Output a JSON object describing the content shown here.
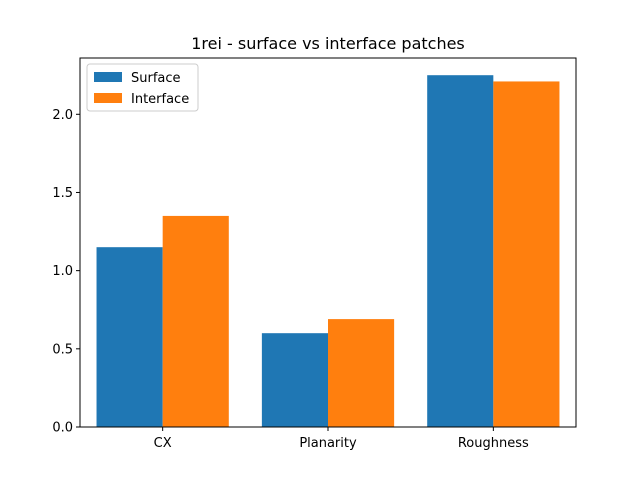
{
  "chart_data": {
    "type": "bar",
    "title": "1rei - surface vs interface patches",
    "xlabel": "",
    "ylabel": "",
    "categories": [
      "CX",
      "Planarity",
      "Roughness"
    ],
    "series": [
      {
        "name": "Surface",
        "values": [
          1.15,
          0.6,
          2.25
        ],
        "color": "#1f77b4"
      },
      {
        "name": "Interface",
        "values": [
          1.35,
          0.69,
          2.21
        ],
        "color": "#ff7f0e"
      }
    ],
    "ylim": [
      0,
      2.36
    ],
    "yticks": [
      0.0,
      0.5,
      1.0,
      1.5,
      2.0
    ],
    "ytick_labels": [
      "0.0",
      "0.5",
      "1.0",
      "1.5",
      "2.0"
    ],
    "grid": false,
    "legend_position": "upper left"
  }
}
